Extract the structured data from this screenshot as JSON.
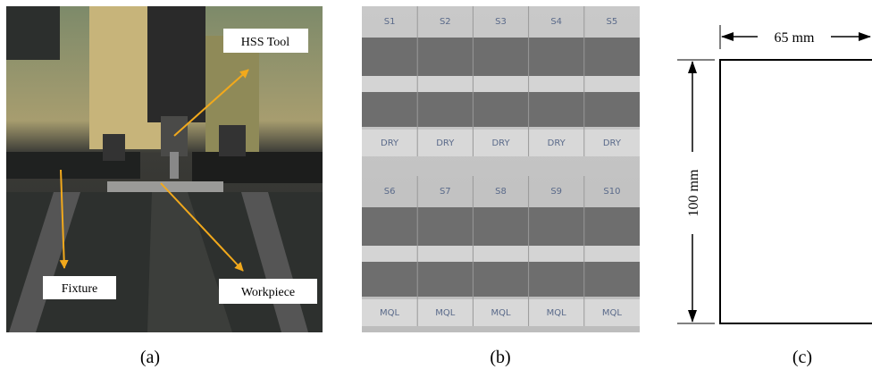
{
  "panel_a": {
    "caption": "(a)",
    "tool_label": "HSS Tool",
    "fixture_label": "Fixture",
    "workpiece_label": "Workpiece"
  },
  "panel_b": {
    "caption": "(b)",
    "row_1": {
      "samples": [
        "S1",
        "S2",
        "S3",
        "S4",
        "S5"
      ],
      "conditions": [
        "DRY",
        "DRY",
        "DRY",
        "DRY",
        "DRY"
      ]
    },
    "row_2": {
      "samples": [
        "S6",
        "S7",
        "S8",
        "S9",
        "S10"
      ],
      "conditions": [
        "MQL",
        "MQL",
        "MQL",
        "MQL",
        "MQL"
      ]
    }
  },
  "panel_c": {
    "caption": "(c)",
    "width_label": "65 mm",
    "height_label": "100 mm"
  }
}
